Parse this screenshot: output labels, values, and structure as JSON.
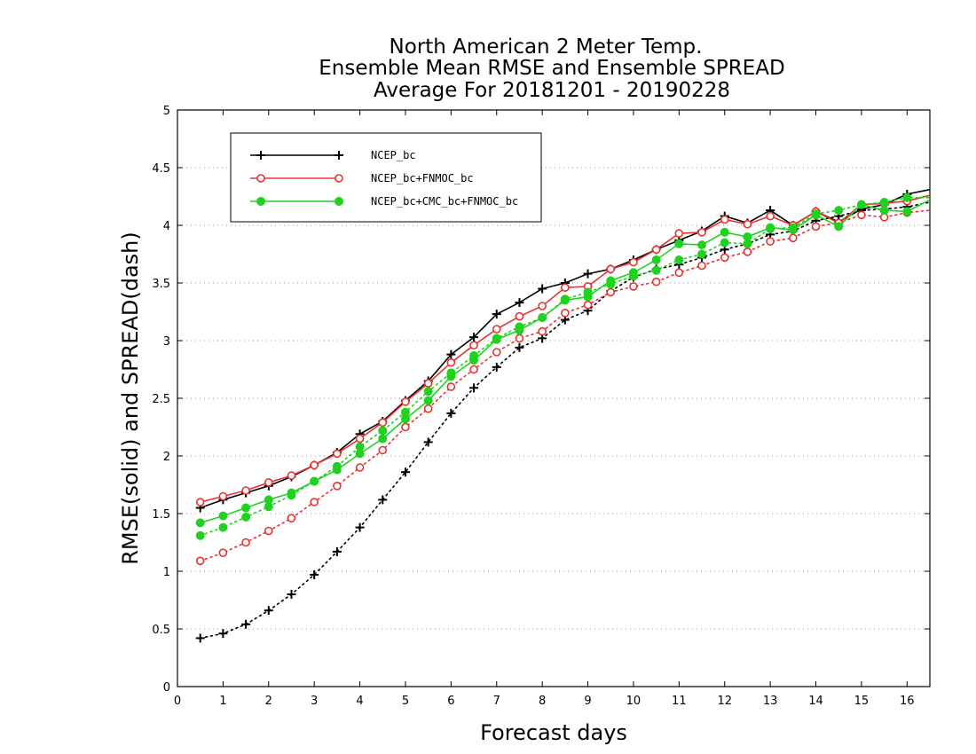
{
  "chart_data": {
    "type": "line",
    "title": [
      "North American 2 Meter Temp.",
      "Ensemble Mean RMSE and Ensemble SPREAD",
      "Average For 20181201 - 20190228"
    ],
    "xlabel": "Forecast days",
    "ylabel": "RMSE(solid) and SPREAD(dash)",
    "xlim": [
      0,
      16.5
    ],
    "ylim": [
      0,
      5
    ],
    "xticks": [
      "0",
      "1",
      "2",
      "3",
      "4",
      "5",
      "6",
      "7",
      "8",
      "9",
      "10",
      "11",
      "12",
      "13",
      "14",
      "15",
      "16"
    ],
    "yticks": [
      "0",
      "0.5",
      "1",
      "1.5",
      "2",
      "2.5",
      "3",
      "3.5",
      "4",
      "4.5",
      "5"
    ],
    "grid": "horizontal dotted",
    "legend_position": "top-left",
    "x": [
      0.5,
      1,
      1.5,
      2,
      2.5,
      3,
      3.5,
      4,
      4.5,
      5,
      5.5,
      6,
      6.5,
      7,
      7.5,
      8,
      8.5,
      9,
      9.5,
      10,
      10.5,
      11,
      11.5,
      12,
      12.5,
      13,
      13.5,
      14,
      14.5,
      15,
      15.5,
      16,
      16.5
    ],
    "series": [
      {
        "name": "NCEP_bc",
        "color": "#000000",
        "marker": "plus",
        "rmse": [
          1.55,
          1.62,
          1.68,
          1.74,
          1.82,
          1.92,
          2.03,
          2.19,
          2.3,
          2.48,
          2.65,
          2.88,
          3.03,
          3.23,
          3.33,
          3.45,
          3.5,
          3.58,
          3.62,
          3.7,
          3.79,
          3.87,
          3.95,
          4.08,
          4.02,
          4.13,
          4.0,
          4.12,
          4.03,
          4.14,
          4.18,
          4.27,
          4.31
        ],
        "spread": [
          0.42,
          0.46,
          0.54,
          0.66,
          0.8,
          0.97,
          1.17,
          1.38,
          1.62,
          1.86,
          2.12,
          2.37,
          2.59,
          2.77,
          2.94,
          3.02,
          3.18,
          3.26,
          3.43,
          3.55,
          3.62,
          3.66,
          3.72,
          3.79,
          3.84,
          3.92,
          3.95,
          4.04,
          4.08,
          4.13,
          4.14,
          4.16,
          4.2
        ]
      },
      {
        "name": "NCEP_bc+FNMOC_bc",
        "color": "#e83030",
        "marker": "open-circle",
        "rmse": [
          1.6,
          1.65,
          1.7,
          1.77,
          1.83,
          1.92,
          2.02,
          2.15,
          2.29,
          2.47,
          2.63,
          2.81,
          2.96,
          3.1,
          3.21,
          3.3,
          3.46,
          3.47,
          3.62,
          3.68,
          3.79,
          3.93,
          3.94,
          4.05,
          4.01,
          4.08,
          4.0,
          4.12,
          4.02,
          4.18,
          4.19,
          4.21,
          4.26
        ],
        "spread": [
          1.09,
          1.16,
          1.25,
          1.35,
          1.46,
          1.6,
          1.74,
          1.9,
          2.05,
          2.25,
          2.41,
          2.6,
          2.75,
          2.9,
          3.02,
          3.08,
          3.24,
          3.31,
          3.42,
          3.47,
          3.51,
          3.59,
          3.65,
          3.72,
          3.77,
          3.86,
          3.89,
          3.99,
          4.02,
          4.09,
          4.07,
          4.11,
          4.13
        ]
      },
      {
        "name": "NCEP_bc+CMC_bc+FNMOC_bc",
        "color": "#1ed21e",
        "marker": "filled-circle",
        "rmse": [
          1.42,
          1.48,
          1.55,
          1.62,
          1.68,
          1.78,
          1.88,
          2.02,
          2.15,
          2.32,
          2.48,
          2.69,
          2.83,
          3.01,
          3.09,
          3.2,
          3.35,
          3.38,
          3.52,
          3.59,
          3.7,
          3.84,
          3.83,
          3.94,
          3.9,
          3.98,
          3.96,
          4.09,
          3.99,
          4.18,
          4.13,
          4.12,
          4.22
        ],
        "spread": [
          1.31,
          1.38,
          1.47,
          1.56,
          1.66,
          1.78,
          1.91,
          2.08,
          2.22,
          2.38,
          2.56,
          2.72,
          2.87,
          3.02,
          3.12,
          3.2,
          3.36,
          3.42,
          3.49,
          3.56,
          3.61,
          3.7,
          3.75,
          3.85,
          3.84,
          3.97,
          3.98,
          4.1,
          4.13,
          4.18,
          4.2,
          4.24,
          4.24
        ]
      }
    ]
  }
}
